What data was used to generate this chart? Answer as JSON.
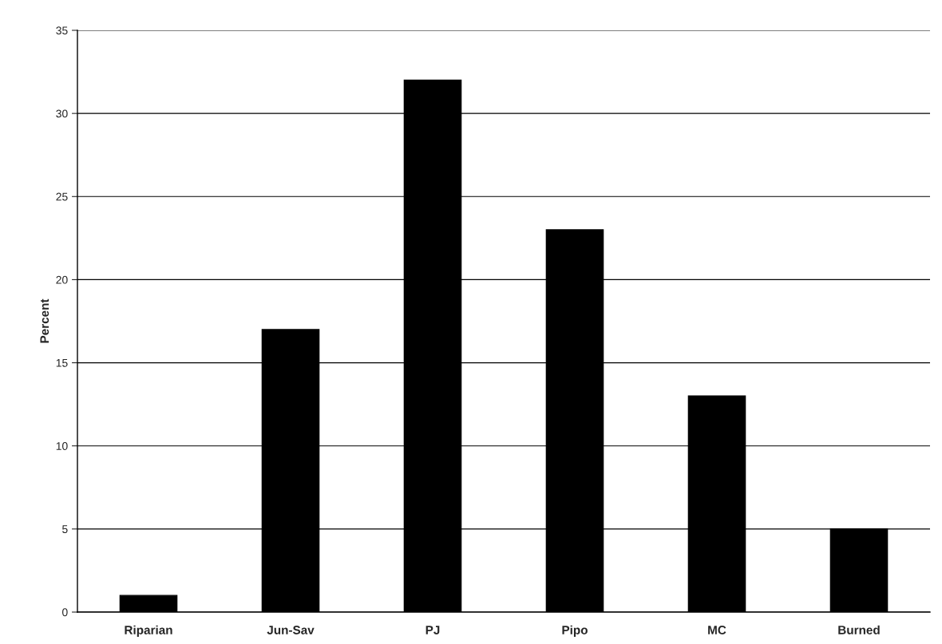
{
  "chart_data": {
    "type": "bar",
    "ylabel": "Percent",
    "categories": [
      "Riparian",
      "Jun-Sav",
      "PJ",
      "Pipo",
      "MC",
      "Burned"
    ],
    "values": [
      1,
      17,
      32,
      23,
      13,
      5
    ],
    "color": "#000000",
    "ylim": [
      0,
      35
    ],
    "yticks": [
      0,
      5,
      10,
      15,
      20,
      25,
      30,
      35
    ],
    "grid": "y"
  }
}
